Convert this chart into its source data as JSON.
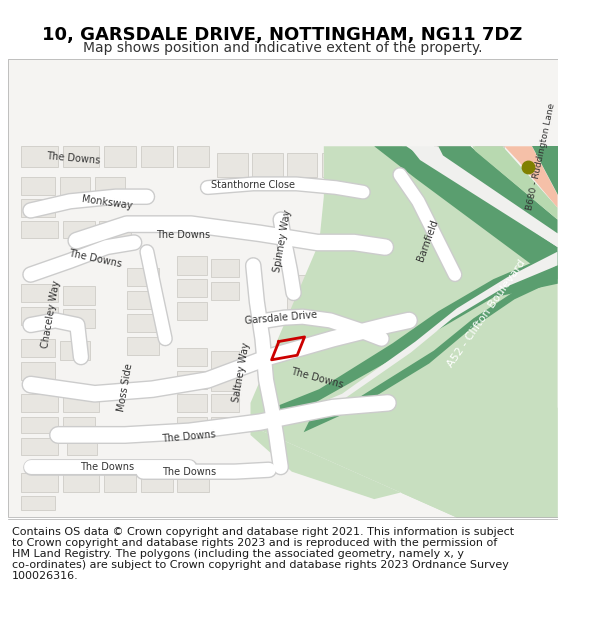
{
  "title": "10, GARSDALE DRIVE, NOTTINGHAM, NG11 7DZ",
  "subtitle": "Map shows position and indicative extent of the property.",
  "footer_lines": [
    "Contains OS data © Crown copyright and database right 2021. This information is subject",
    "to Crown copyright and database rights 2023 and is reproduced with the permission of",
    "HM Land Registry. The polygons (including the associated geometry, namely x, y",
    "co-ordinates) are subject to Crown copyright and database rights 2023 Ordnance Survey",
    "100026316."
  ],
  "building_fill": "#e8e6e1",
  "building_outline": "#c8c6c0",
  "green_dark": "#5a9e6f",
  "green_light": "#b8d9b0",
  "green_med": "#8cbd96",
  "road_b680_fill": "#f5c0a8",
  "plot_color": "#cc0000",
  "dot_color": "#808000",
  "title_fontsize": 13,
  "subtitle_fontsize": 10,
  "footer_fontsize": 8
}
